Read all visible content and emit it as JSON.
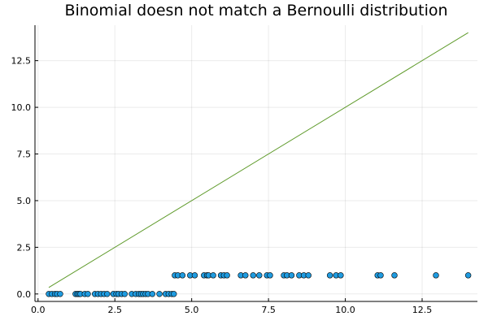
{
  "chart_data": {
    "type": "scatter",
    "title": "Binomial doesn not match a Bernoulli distribution",
    "xlabel": "",
    "ylabel": "",
    "xlim": [
      -0.1,
      14.3
    ],
    "ylim": [
      -0.4,
      14.4
    ],
    "xticks": [
      0.0,
      2.5,
      5.0,
      7.5,
      10.0,
      12.5
    ],
    "xtick_labels": [
      "0.0",
      "2.5",
      "5.0",
      "7.5",
      "10.0",
      "12.5"
    ],
    "yticks": [
      0.0,
      2.5,
      5.0,
      7.5,
      10.0,
      12.5
    ],
    "ytick_labels": [
      "0.0",
      "2.5",
      "5.0",
      "7.5",
      "10.0",
      "12.5"
    ],
    "grid": true,
    "legend": "none",
    "series": [
      {
        "kind": "scatter",
        "color": "#1f9be0",
        "x": [
          0.35,
          0.45,
          0.55,
          0.62,
          0.72,
          1.22,
          1.28,
          1.33,
          1.38,
          1.52,
          1.62,
          1.85,
          1.95,
          2.05,
          2.15,
          2.25,
          2.45,
          2.55,
          2.62,
          2.72,
          2.82,
          3.05,
          3.18,
          3.28,
          3.35,
          3.42,
          3.5,
          3.58,
          3.72,
          3.95,
          4.15,
          4.25,
          4.35,
          4.42,
          4.45,
          4.55,
          4.7,
          4.95,
          5.1,
          5.4,
          5.5,
          5.55,
          5.7,
          5.95,
          6.05,
          6.15,
          6.6,
          6.75,
          7.0,
          7.2,
          7.45,
          7.55,
          8.0,
          8.1,
          8.25,
          8.5,
          8.65,
          8.8,
          9.5,
          9.7,
          9.85,
          11.05,
          11.15,
          11.6,
          12.95,
          14.0
        ],
        "y": [
          0,
          0,
          0,
          0,
          0,
          0,
          0,
          0,
          0,
          0,
          0,
          0,
          0,
          0,
          0,
          0,
          0,
          0,
          0,
          0,
          0,
          0,
          0,
          0,
          0,
          0,
          0,
          0,
          0,
          0,
          0,
          0,
          0,
          0,
          1,
          1,
          1,
          1,
          1,
          1,
          1,
          1,
          1,
          1,
          1,
          1,
          1,
          1,
          1,
          1,
          1,
          1,
          1,
          1,
          1,
          1,
          1,
          1,
          1,
          1,
          1,
          1,
          1,
          1,
          1,
          1
        ]
      },
      {
        "kind": "line",
        "color": "#5e9a2a",
        "x": [
          0.35,
          14.0
        ],
        "y": [
          0.35,
          14.0
        ]
      }
    ]
  }
}
